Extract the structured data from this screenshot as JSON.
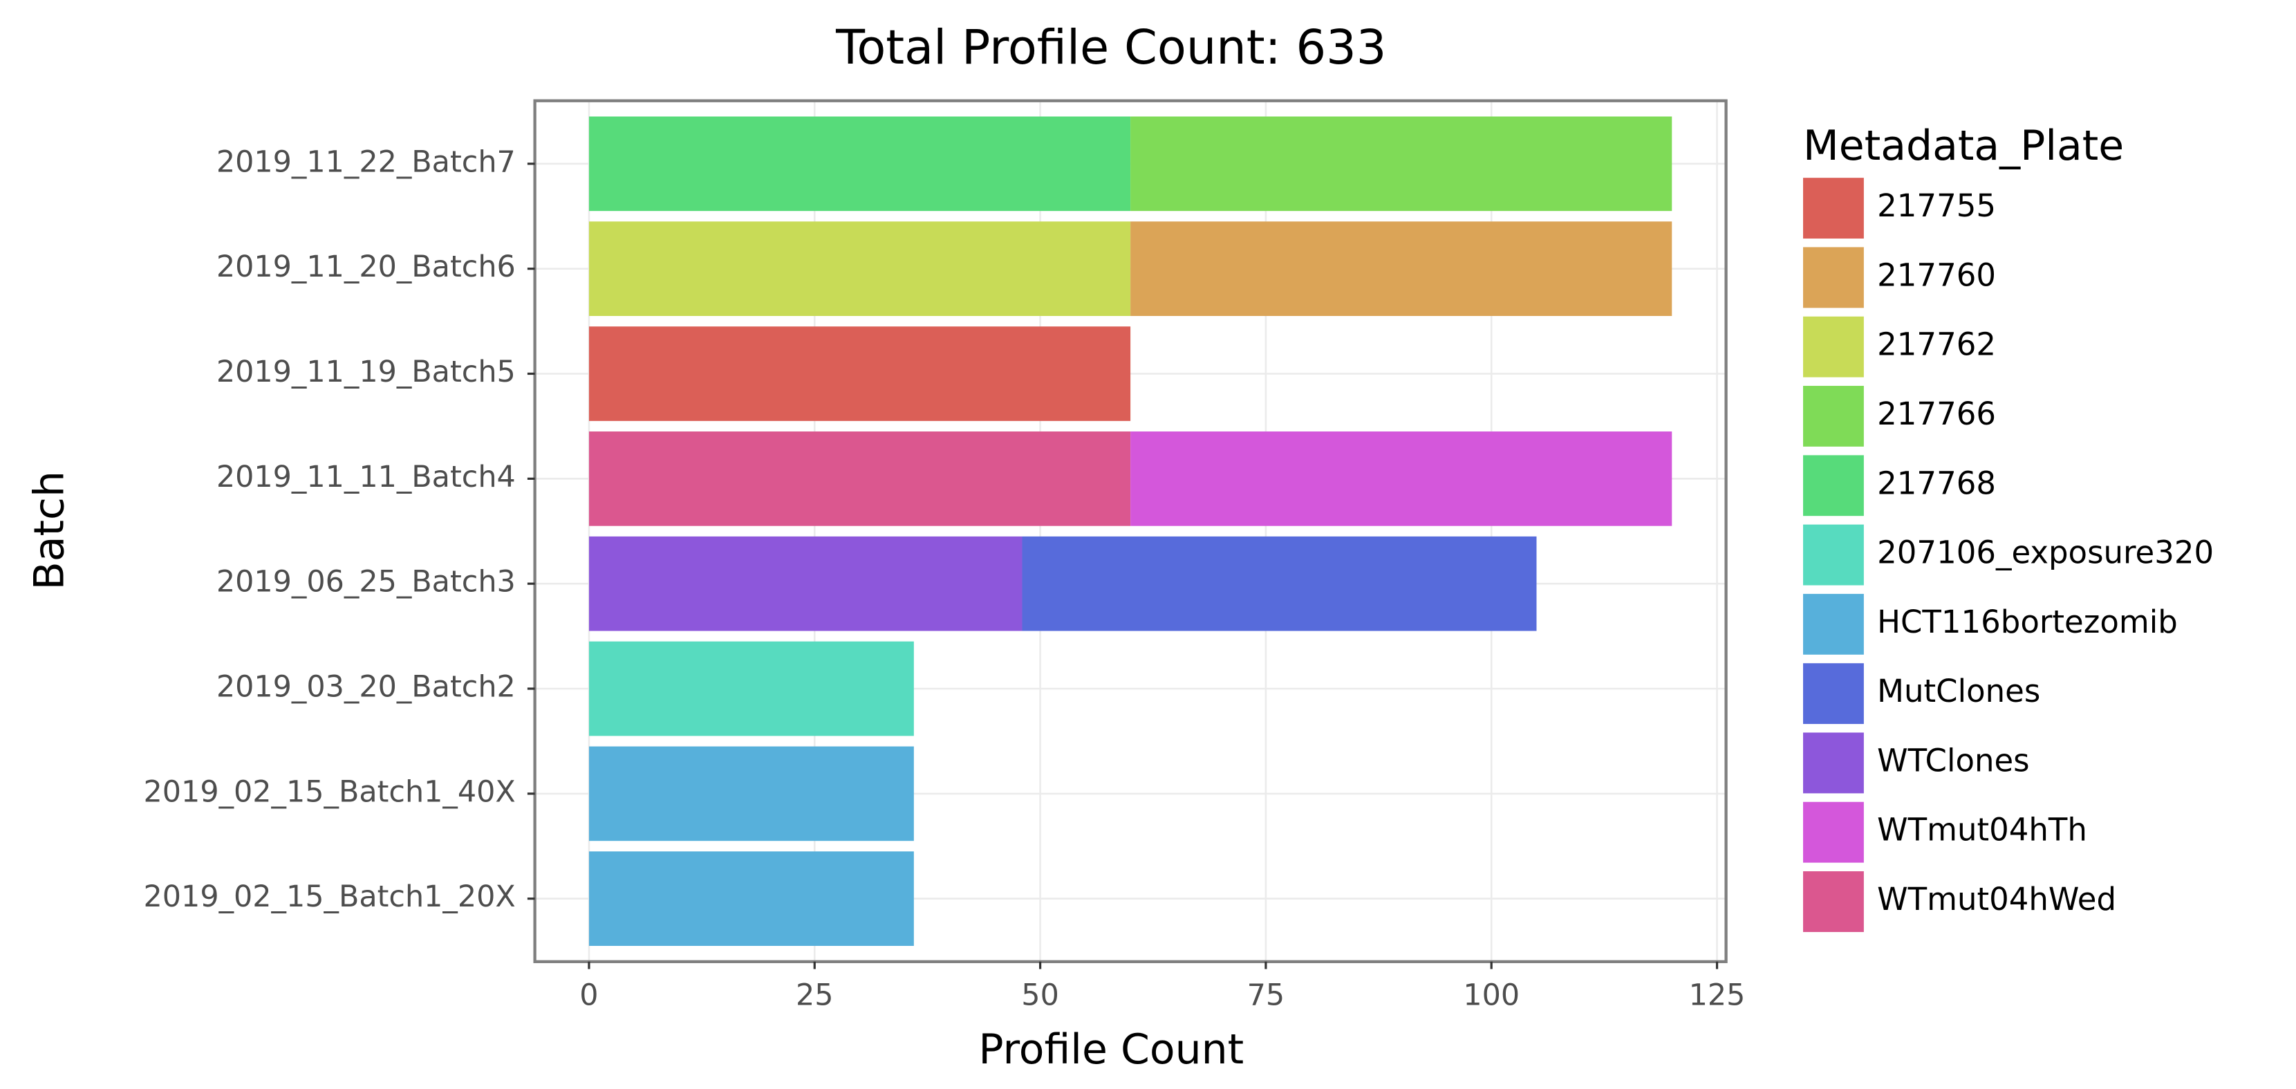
{
  "chart_data": {
    "type": "stacked_barh",
    "title": "Total Profile Count: 633",
    "x_label": "Profile Count",
    "y_label": "Batch",
    "legend_title": "Metadata_Plate",
    "categories": [
      "2019_11_22_Batch7",
      "2019_11_20_Batch6",
      "2019_11_19_Batch5",
      "2019_11_11_Batch4",
      "2019_06_25_Batch3",
      "2019_03_20_Batch2",
      "2019_02_15_Batch1_40X",
      "2019_02_15_Batch1_20X"
    ],
    "series": [
      {
        "name": "217755",
        "color": "#db5f57",
        "values": [
          null,
          null,
          60,
          null,
          null,
          null,
          null,
          null
        ]
      },
      {
        "name": "217760",
        "color": "#dba457",
        "values": [
          null,
          60,
          null,
          null,
          null,
          null,
          null,
          null
        ]
      },
      {
        "name": "217762",
        "color": "#c8db57",
        "values": [
          null,
          60,
          null,
          null,
          null,
          null,
          null,
          null
        ]
      },
      {
        "name": "217766",
        "color": "#7fdb57",
        "values": [
          60,
          null,
          null,
          null,
          null,
          null,
          null,
          null
        ]
      },
      {
        "name": "217768",
        "color": "#57db7a",
        "values": [
          60,
          null,
          null,
          null,
          null,
          null,
          null,
          null
        ]
      },
      {
        "name": "207106_exposure320",
        "color": "#57dbbf",
        "values": [
          null,
          null,
          null,
          null,
          null,
          36,
          null,
          null
        ]
      },
      {
        "name": "HCT116bortezomib",
        "color": "#57b0db",
        "values": [
          null,
          null,
          null,
          null,
          null,
          null,
          36,
          36
        ]
      },
      {
        "name": "MutClones",
        "color": "#576bdb",
        "values": [
          null,
          null,
          null,
          null,
          57,
          null,
          null,
          null
        ]
      },
      {
        "name": "WTClones",
        "color": "#8d57db",
        "values": [
          null,
          null,
          null,
          null,
          48,
          null,
          null,
          null
        ]
      },
      {
        "name": "WTmut04hTh",
        "color": "#d457db",
        "values": [
          null,
          null,
          null,
          60,
          null,
          null,
          null,
          null
        ]
      },
      {
        "name": "WTmut04hWed",
        "color": "#db578f",
        "values": [
          null,
          null,
          null,
          60,
          null,
          null,
          null,
          null
        ]
      }
    ],
    "xlim": [
      -6,
      126
    ],
    "xticks": [
      0,
      25,
      50,
      75,
      100,
      125
    ],
    "grid": true
  }
}
